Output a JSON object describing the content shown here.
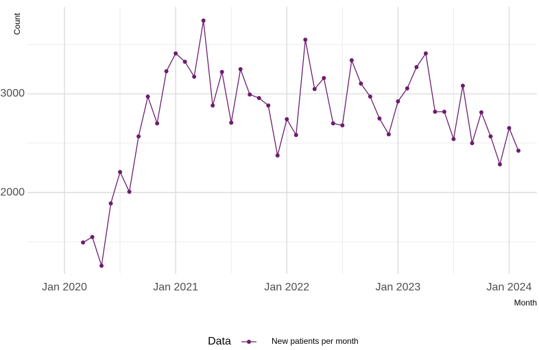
{
  "chart_data": {
    "type": "line",
    "x_label": "Month",
    "y_label": "Count",
    "legend_title": "Data",
    "x": [
      "2020-03",
      "2020-04",
      "2020-05",
      "2020-06",
      "2020-07",
      "2020-08",
      "2020-09",
      "2020-10",
      "2020-11",
      "2020-12",
      "2021-01",
      "2021-02",
      "2021-03",
      "2021-04",
      "2021-05",
      "2021-06",
      "2021-07",
      "2021-08",
      "2021-09",
      "2021-10",
      "2021-11",
      "2021-12",
      "2022-01",
      "2022-02",
      "2022-03",
      "2022-04",
      "2022-05",
      "2022-06",
      "2022-07",
      "2022-08",
      "2022-09",
      "2022-10",
      "2022-11",
      "2022-12",
      "2023-01",
      "2023-02",
      "2023-03",
      "2023-04",
      "2023-05",
      "2023-06",
      "2023-07",
      "2023-08",
      "2023-09",
      "2023-10",
      "2023-11",
      "2023-12",
      "2024-01",
      "2024-02"
    ],
    "series": [
      {
        "name": "New patients per month",
        "color": "#6c1d6e",
        "values": [
          1493,
          1549,
          1257,
          1889,
          2208,
          2007,
          2569,
          2972,
          2701,
          3229,
          3410,
          3326,
          3174,
          3743,
          2882,
          3222,
          2708,
          3250,
          2993,
          2958,
          2882,
          2375,
          2743,
          2583,
          3549,
          3049,
          3160,
          2701,
          2681,
          3340,
          3104,
          2972,
          2750,
          2590,
          2924,
          3056,
          3271,
          3410,
          2819,
          2819,
          2542,
          3083,
          2500,
          2813,
          2569,
          2285,
          2653,
          2424
        ]
      }
    ],
    "xlim": [
      "2019-09",
      "2024-04"
    ],
    "xticks": [
      {
        "value": "2020-01",
        "label": "Jan 2020"
      },
      {
        "value": "2021-01",
        "label": "Jan 2021"
      },
      {
        "value": "2022-01",
        "label": "Jan 2022"
      },
      {
        "value": "2023-01",
        "label": "Jan 2023"
      },
      {
        "value": "2024-01",
        "label": "Jan 2024"
      }
    ],
    "ylim": [
      1174,
      3882
    ],
    "yticks": [
      2000,
      3000
    ],
    "grid": true,
    "legend": "bottom"
  }
}
